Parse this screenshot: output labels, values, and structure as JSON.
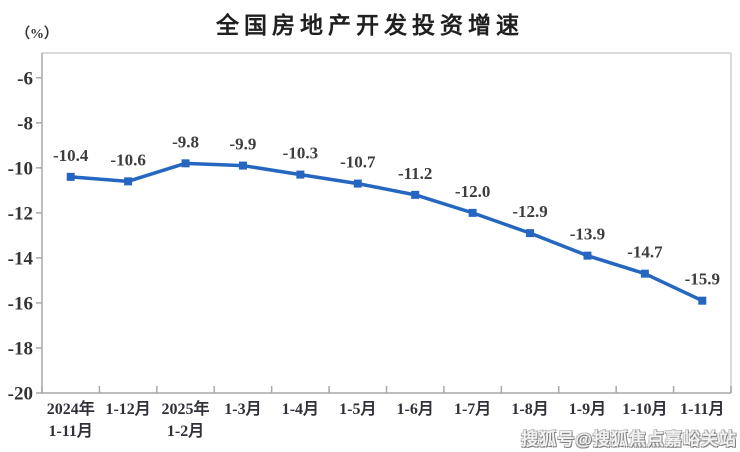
{
  "page": {
    "title": "全国房地产开发投资增速",
    "y_axis_unit": "（%）",
    "watermark": "搜狐号@搜狐焦点嘉峪关站"
  },
  "chart_data": {
    "type": "line",
    "title": "全国房地产开发投资增速",
    "ylabel": "（%）",
    "categories": [
      [
        "2024年",
        "1-11月"
      ],
      [
        "1-12月"
      ],
      [
        "2025年",
        "1-2月"
      ],
      [
        "1-3月"
      ],
      [
        "1-4月"
      ],
      [
        "1-5月"
      ],
      [
        "1-6月"
      ],
      [
        "1-7月"
      ],
      [
        "1-8月"
      ],
      [
        "1-9月"
      ],
      [
        "1-10月"
      ],
      [
        "1-11月"
      ]
    ],
    "values": [
      -10.4,
      -10.6,
      -9.8,
      -9.9,
      -10.3,
      -10.7,
      -11.2,
      -12.0,
      -12.9,
      -13.9,
      -14.7,
      -15.9
    ],
    "data_labels": [
      "-10.4",
      "-10.6",
      "-9.8",
      "-9.9",
      "-10.3",
      "-10.7",
      "-11.2",
      "-12.0",
      "-12.9",
      "-13.9",
      "-14.7",
      "-15.9"
    ],
    "y_ticks": [
      -6,
      -8,
      -10,
      -12,
      -14,
      -16,
      -18,
      -20
    ],
    "ylim": [
      -20,
      -4.9
    ],
    "grid": false,
    "legend": false,
    "marker": "square",
    "colors": {
      "line": "#2567C0",
      "marker": "#2567C0",
      "data_label": "#3d3d3d",
      "tick_label": "#333333",
      "x_label": "#30303a",
      "axis": "#a8a8a8",
      "border": "#d9d9d9",
      "title": "#1f1f1f"
    }
  }
}
